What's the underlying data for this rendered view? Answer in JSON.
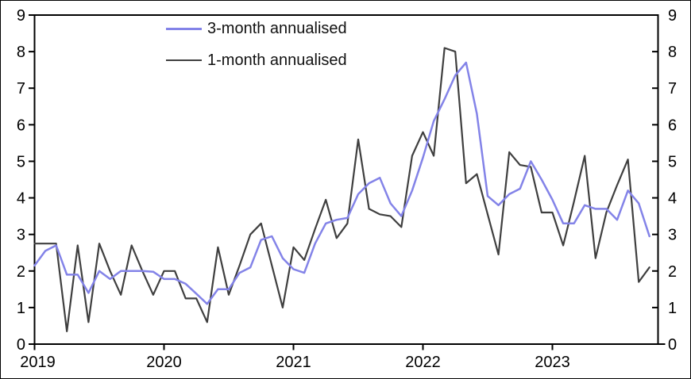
{
  "chart_data": {
    "type": "line",
    "title": "",
    "grid": false,
    "dual_axis": true,
    "legend_position": "top-inside-left",
    "ylim": [
      0,
      9
    ],
    "y_tick_labels": [
      "0",
      "1",
      "2",
      "3",
      "4",
      "5",
      "6",
      "7",
      "8",
      "9"
    ],
    "x_tick_labels": [
      "2019",
      "2020",
      "2021",
      "2022",
      "2023"
    ],
    "x_tick_month_indices": [
      0,
      12,
      24,
      36,
      48
    ],
    "x_unit": "month",
    "n_points": 58,
    "x_range_note": "monthly data Jan 2019 - Oct 2023",
    "series": [
      {
        "name": "3-month annualised",
        "color": "#8383e8",
        "values": [
          2.15,
          2.55,
          2.7,
          1.9,
          1.9,
          1.4,
          2.0,
          1.78,
          2.0,
          2.0,
          2.0,
          1.98,
          1.78,
          1.78,
          1.65,
          1.38,
          1.1,
          1.5,
          1.5,
          1.95,
          2.1,
          2.85,
          2.95,
          2.35,
          2.05,
          1.95,
          2.75,
          3.3,
          3.4,
          3.45,
          4.1,
          4.4,
          4.55,
          3.85,
          3.5,
          4.2,
          5.1,
          6.1,
          6.7,
          7.35,
          7.7,
          6.3,
          4.05,
          3.8,
          4.1,
          4.25,
          5.0,
          4.5,
          3.95,
          3.3,
          3.3,
          3.8,
          3.7,
          3.7,
          3.4,
          4.2,
          3.85,
          2.95
        ]
      },
      {
        "name": "1-month annualised",
        "color": "#3f3f3f",
        "values": [
          2.75,
          2.75,
          2.75,
          0.35,
          2.7,
          0.6,
          2.75,
          2.0,
          1.35,
          2.7,
          2.0,
          1.35,
          2.0,
          2.0,
          1.25,
          1.25,
          0.6,
          2.65,
          1.35,
          2.15,
          3.0,
          3.3,
          2.15,
          1.0,
          2.65,
          2.3,
          3.15,
          3.95,
          2.9,
          3.3,
          5.6,
          3.7,
          3.55,
          3.5,
          3.2,
          5.15,
          5.8,
          5.15,
          8.1,
          8.0,
          4.4,
          4.65,
          3.55,
          2.45,
          5.25,
          4.9,
          4.85,
          3.6,
          3.6,
          2.7,
          3.9,
          5.15,
          2.35,
          3.6,
          4.35,
          5.05,
          1.7,
          2.1
        ]
      }
    ],
    "axis_color": "#000000",
    "background_color": "#ffffff"
  }
}
